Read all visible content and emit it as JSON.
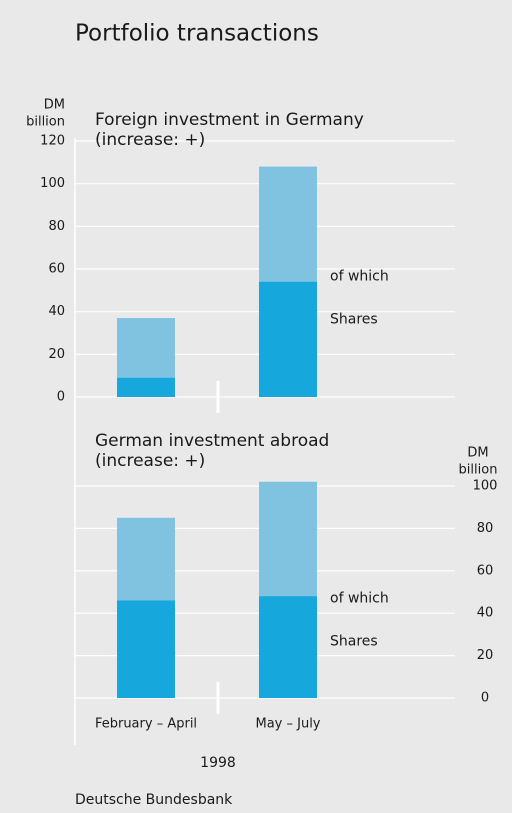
{
  "title": "Portfolio transactions",
  "categories": [
    "February – April",
    "May – July"
  ],
  "x_label": "1998",
  "source": "Deutsche Bundesbank",
  "chart_data": [
    {
      "type": "bar",
      "title": [
        "Foreign investment in Germany",
        "(increase: +)"
      ],
      "ylabel": [
        "DM",
        "billion"
      ],
      "yaxis_side": "left",
      "ylim": [
        0,
        120
      ],
      "yticks": [
        0,
        20,
        40,
        60,
        80,
        100,
        120
      ],
      "grid": true,
      "annotation": "of which",
      "series": [
        {
          "color": "#80c3e1",
          "values": [
            37,
            108
          ]
        },
        {
          "name": "Shares",
          "color": "#16a8dc",
          "values": [
            9,
            54
          ]
        }
      ]
    },
    {
      "type": "bar",
      "title": [
        "German investment abroad",
        "(increase: +)"
      ],
      "ylabel": [
        "DM",
        "billion"
      ],
      "yaxis_side": "right",
      "ylim": [
        0,
        100
      ],
      "yticks": [
        0,
        20,
        40,
        60,
        80,
        100
      ],
      "grid": true,
      "annotation": "of which",
      "series": [
        {
          "color": "#80c3e1",
          "values": [
            85,
            102
          ]
        },
        {
          "name": "Shares",
          "color": "#16a8dc",
          "values": [
            46,
            48
          ]
        }
      ]
    }
  ]
}
